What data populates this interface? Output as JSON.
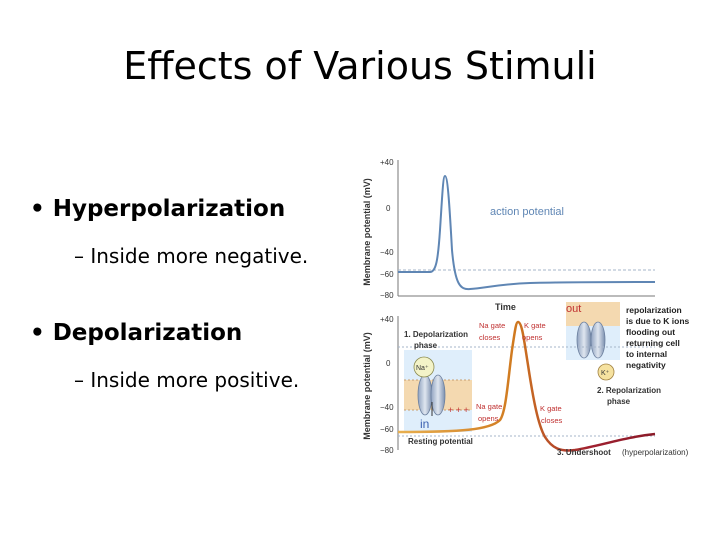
{
  "slide": {
    "title": "Effects of Various Stimuli",
    "bullets": [
      {
        "label": "Hyperpolarization",
        "sub": "Inside more negative."
      },
      {
        "label": "Depolarization",
        "sub": "Inside more positive."
      }
    ]
  },
  "top_plot": {
    "ylabel": "Membrane potential (mV)",
    "yticks": [
      "+40",
      "0",
      "−40",
      "−60",
      "−80"
    ],
    "xlabel": "Time",
    "curve_label": "action potential"
  },
  "bottom_plot": {
    "ylabel": "Membrane potential (mV)",
    "yticks": [
      "+40",
      "0",
      "−40",
      "−60",
      "−80"
    ],
    "labels": {
      "depol_1": "1. Depolarization",
      "depol_2": "phase",
      "na_close_1": "Na gate",
      "na_close_2": "closes",
      "k_open_1": "K gate",
      "k_open_2": "opens",
      "out": "out",
      "in": "in",
      "na_ion": "Na⁺",
      "k_ion": "K⁺",
      "na_open_1": "Na gate",
      "na_open_2": "opens",
      "k_close_1": "K gate",
      "k_close_2": "closes",
      "repol_1": "2. Repolarization",
      "repol_2": "phase",
      "resting": "Resting potential",
      "undershoot": "3. Undershoot",
      "hyper": "(hyperpolarization)"
    },
    "note": [
      "repolarization",
      "is due to K ions",
      "flooding out",
      "returning cell",
      "to internal",
      "negativity"
    ]
  }
}
